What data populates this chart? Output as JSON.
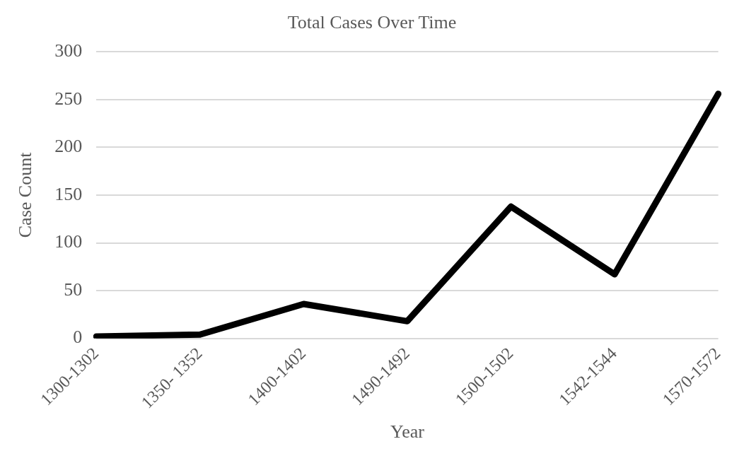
{
  "chart_data": {
    "type": "line",
    "title": "Total Cases Over Time",
    "xlabel": "Year",
    "ylabel": "Case Count",
    "categories": [
      "1300-1302",
      "1350- 1352",
      "1400-1402",
      "1490-1492",
      "1500-1502",
      "1542-1544",
      "1570-1572"
    ],
    "series": [
      {
        "color": "#000000",
        "values": [
          2,
          4,
          36,
          18,
          138,
          67,
          256
        ]
      }
    ],
    "ylim": [
      0,
      300
    ],
    "yticks": [
      0,
      50,
      100,
      150,
      200,
      250,
      300
    ],
    "grid": "y",
    "legend": false,
    "marker": "none",
    "line_style": "solid"
  }
}
